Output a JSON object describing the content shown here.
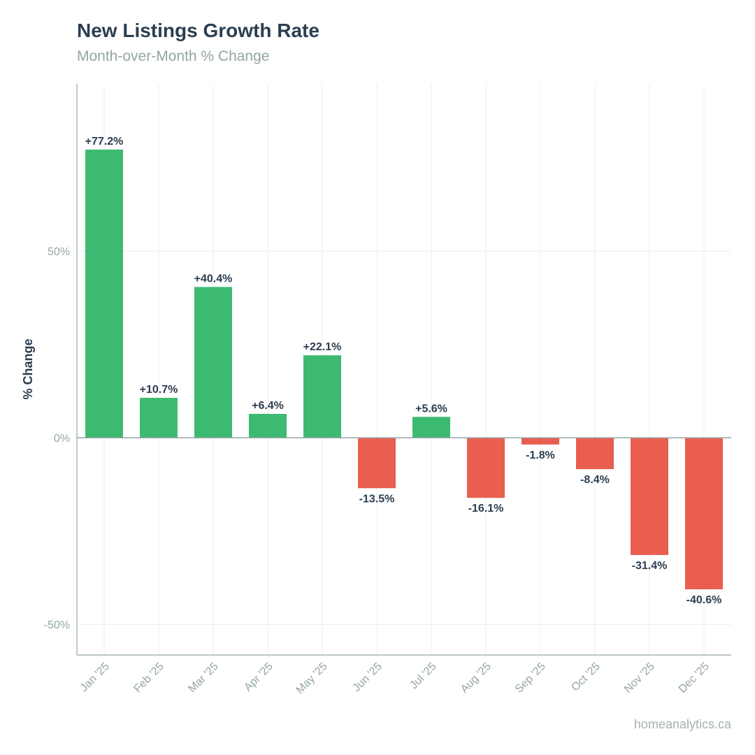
{
  "chart_data": {
    "type": "bar",
    "title": "New Listings Growth Rate",
    "subtitle": "Month-over-Month % Change",
    "xlabel": "",
    "ylabel": "% Change",
    "categories": [
      "Jan '25",
      "Feb '25",
      "Mar '25",
      "Apr '25",
      "May '25",
      "Jun '25",
      "Jul '25",
      "Aug '25",
      "Sep '25",
      "Oct '25",
      "Nov '25",
      "Dec '25"
    ],
    "values": [
      77.2,
      10.7,
      40.4,
      6.4,
      22.1,
      -13.5,
      5.6,
      -16.1,
      -1.8,
      -8.4,
      -31.4,
      -40.6
    ],
    "data_labels": [
      "+77.2%",
      "+10.7%",
      "+40.4%",
      "+6.4%",
      "+22.1%",
      "-13.5%",
      "+5.6%",
      "-16.1%",
      "-1.8%",
      "-8.4%",
      "-31.4%",
      "-40.6%"
    ],
    "ylim": [
      -58.2,
      94.8
    ],
    "yticks": [
      -50,
      0,
      50
    ],
    "ytick_labels": [
      "-50%",
      "0%",
      "50%"
    ],
    "grid": true,
    "colors": {
      "positive": "#3dba71",
      "negative": "#e95e4f"
    }
  },
  "footer": {
    "source": "homeanalytics.ca"
  }
}
